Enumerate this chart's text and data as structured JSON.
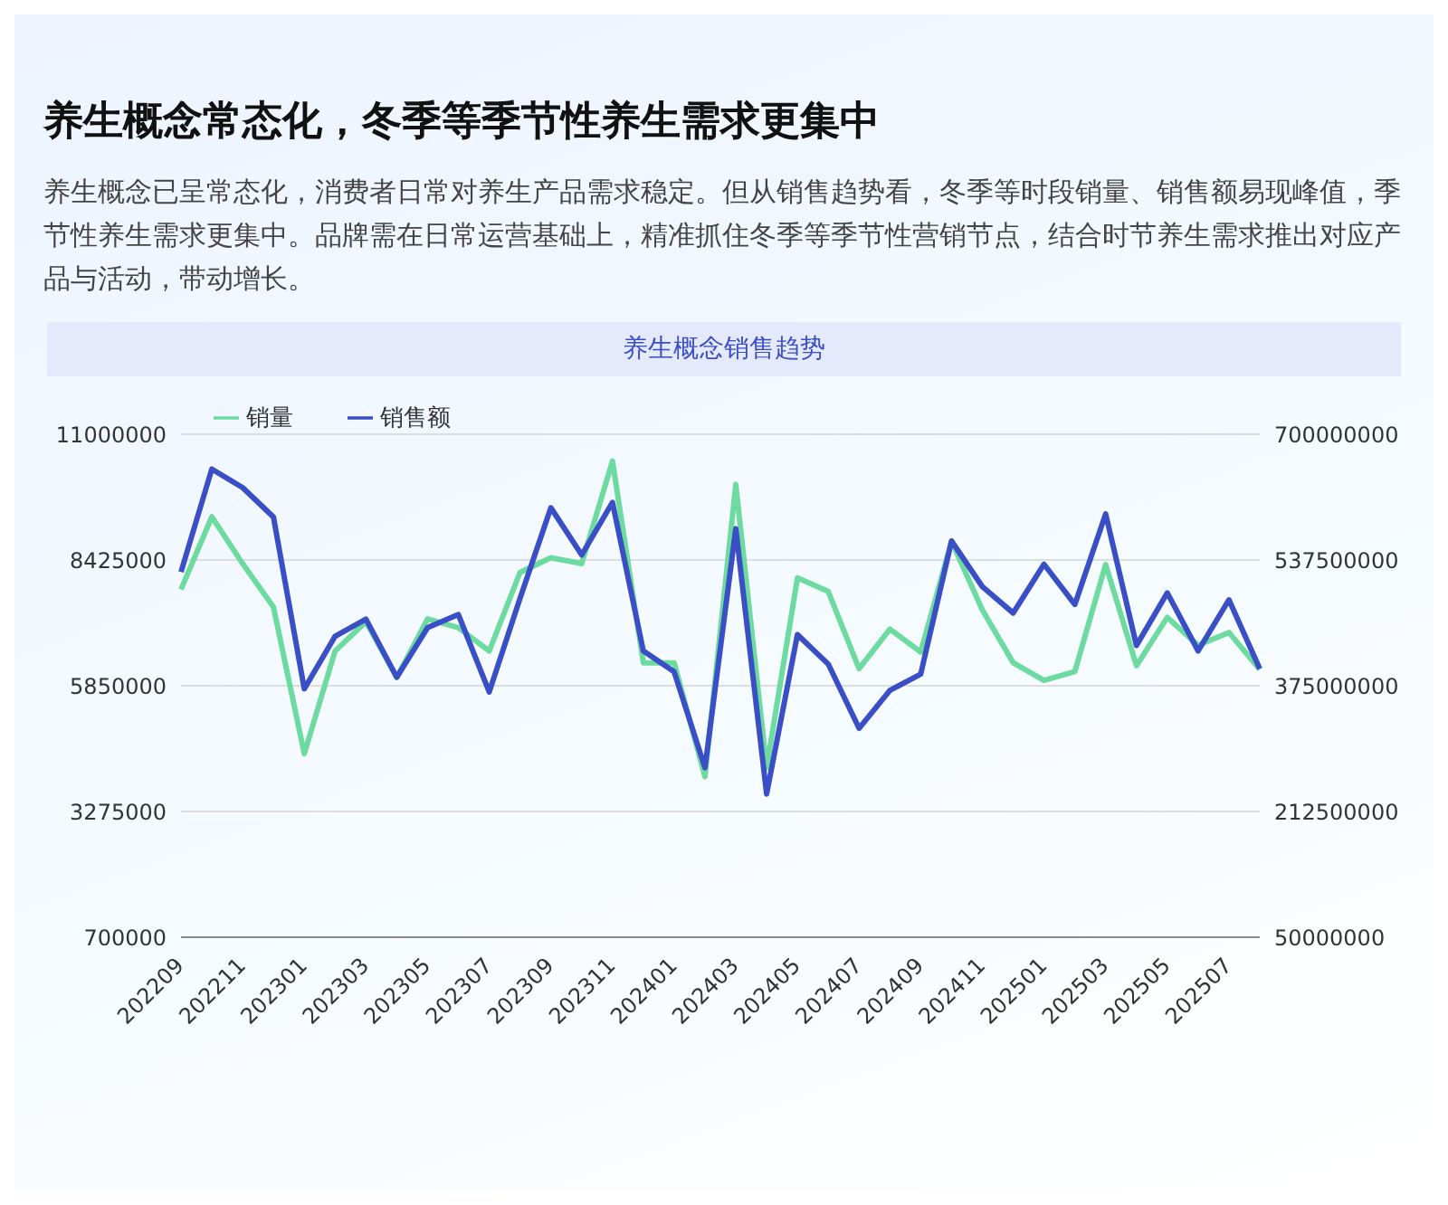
{
  "chart_data": {
    "type": "line",
    "title": "养生概念常态化，冬季等季节性养生需求更集中",
    "subtitle": "养生概念已呈常态化，消费者日常对养生产品需求稳定。但从销售趋势看，冬季等时段销量、销售额易现峰值，季节性养生需求更集中。品牌需在日常运营基础上，精准抓住冬季等季节性营销节点，结合时节养生需求推出对应产品与活动，带动增长。",
    "annotations": [
      "养生概念销售趋势"
    ],
    "categories": [
      "202209",
      null,
      "202211",
      null,
      "202301",
      null,
      "202303",
      null,
      "202305",
      null,
      "202307",
      null,
      "202309",
      null,
      "202311",
      null,
      "202401",
      null,
      "202403",
      null,
      "202405",
      null,
      "202407",
      null,
      "202409",
      null,
      "202411",
      null,
      "202501",
      null,
      "202503",
      null,
      "202505",
      null,
      "202507",
      null
    ],
    "series": [
      {
        "name": "销量",
        "color": "#6ddba0",
        "values": [
          7820000,
          9310000,
          8350000,
          7460000,
          4460000,
          6560000,
          7160000,
          6020000,
          7220000,
          7040000,
          6560000,
          8170000,
          8470000,
          8350000,
          10450000,
          6320000,
          6320000,
          3990000,
          9970000,
          4170000,
          8060000,
          7780000,
          6200000,
          7010000,
          6540000,
          8810000,
          7400000,
          6320000,
          5960000,
          6140000,
          8330000,
          6260000,
          7250000,
          6680000,
          6940000,
          6180000
        ]
      },
      {
        "name": "销售额",
        "color": "#3a4fc6",
        "axis": "y2",
        "values": [
          522000000,
          655000000,
          631000000,
          593000000,
          371000000,
          439000000,
          461000000,
          386000000,
          450000000,
          467000000,
          367000000,
          488000000,
          605000000,
          544000000,
          612000000,
          420000000,
          393000000,
          269000000,
          578000000,
          235000000,
          441000000,
          403000000,
          320000000,
          369000000,
          390000000,
          562000000,
          503000000,
          469000000,
          532000000,
          480000000,
          597000000,
          427000000,
          495000000,
          420000000,
          486000000,
          397000000
        ]
      }
    ],
    "ylim": [
      700000,
      11000000
    ],
    "yticks": [
      700000,
      3275000,
      5850000,
      8425000,
      11000000
    ],
    "y2lim": [
      50000000,
      700000000
    ],
    "y2ticks": [
      50000000,
      212500000,
      375000000,
      537500000,
      700000000
    ],
    "grid": "y",
    "legend": "top left",
    "marker": "none",
    "line_style": "solid"
  }
}
